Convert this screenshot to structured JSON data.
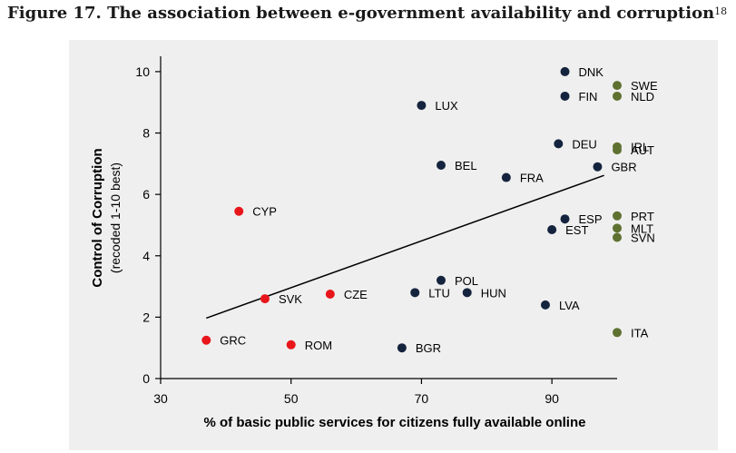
{
  "title": {
    "text": "Figure 17. The association between e-government availability and corruption",
    "footnote": "18"
  },
  "chart_data": {
    "type": "scatter",
    "xlabel": "% of basic public services for citizens fully available online",
    "ylabel": "Control of Corruption",
    "ylabel_sub": "(recoded 1-10 best)",
    "xlim": [
      30,
      100
    ],
    "ylim": [
      0,
      10.5
    ],
    "xticks": [
      30,
      50,
      70,
      90
    ],
    "yticks": [
      0,
      2,
      4,
      6,
      8,
      10
    ],
    "colors": {
      "navy": "#15243e",
      "red": "#e8161b",
      "olive": "#5f7131",
      "line": "#000000"
    },
    "trendline": {
      "x": [
        37,
        98
      ],
      "y": [
        1.97,
        6.62
      ]
    },
    "points": [
      {
        "label": "DNK",
        "x": 92,
        "y": 10.0,
        "color": "navy"
      },
      {
        "label": "FIN",
        "x": 92,
        "y": 9.2,
        "color": "navy"
      },
      {
        "label": "SWE",
        "x": 100,
        "y": 9.55,
        "color": "olive"
      },
      {
        "label": "NLD",
        "x": 100,
        "y": 9.2,
        "color": "olive"
      },
      {
        "label": "LUX",
        "x": 70,
        "y": 8.9,
        "color": "navy"
      },
      {
        "label": "DEU",
        "x": 91,
        "y": 7.65,
        "color": "navy"
      },
      {
        "label": "IRL",
        "x": 100,
        "y": 7.55,
        "color": "olive"
      },
      {
        "label": "AUT",
        "x": 100,
        "y": 7.45,
        "color": "olive"
      },
      {
        "label": "BEL",
        "x": 73,
        "y": 6.95,
        "color": "navy"
      },
      {
        "label": "GBR",
        "x": 97,
        "y": 6.9,
        "color": "navy"
      },
      {
        "label": "FRA",
        "x": 83,
        "y": 6.55,
        "color": "navy"
      },
      {
        "label": "CYP",
        "x": 42,
        "y": 5.45,
        "color": "red"
      },
      {
        "label": "ESP",
        "x": 92,
        "y": 5.2,
        "color": "navy"
      },
      {
        "label": "PRT",
        "x": 100,
        "y": 5.3,
        "color": "olive"
      },
      {
        "label": "EST",
        "x": 90,
        "y": 4.85,
        "color": "navy"
      },
      {
        "label": "MLT",
        "x": 100,
        "y": 4.9,
        "color": "olive"
      },
      {
        "label": "SVN",
        "x": 100,
        "y": 4.6,
        "color": "olive"
      },
      {
        "label": "POL",
        "x": 73,
        "y": 3.2,
        "color": "navy"
      },
      {
        "label": "LTU",
        "x": 69,
        "y": 2.8,
        "color": "navy"
      },
      {
        "label": "HUN",
        "x": 77,
        "y": 2.8,
        "color": "navy"
      },
      {
        "label": "SVK",
        "x": 46,
        "y": 2.6,
        "color": "red"
      },
      {
        "label": "CZE",
        "x": 56,
        "y": 2.75,
        "color": "red"
      },
      {
        "label": "LVA",
        "x": 89,
        "y": 2.4,
        "color": "navy"
      },
      {
        "label": "GRC",
        "x": 37,
        "y": 1.25,
        "color": "red"
      },
      {
        "label": "ROM",
        "x": 50,
        "y": 1.1,
        "color": "red"
      },
      {
        "label": "BGR",
        "x": 67,
        "y": 1.0,
        "color": "navy"
      },
      {
        "label": "ITA",
        "x": 100,
        "y": 1.5,
        "color": "olive"
      }
    ]
  }
}
